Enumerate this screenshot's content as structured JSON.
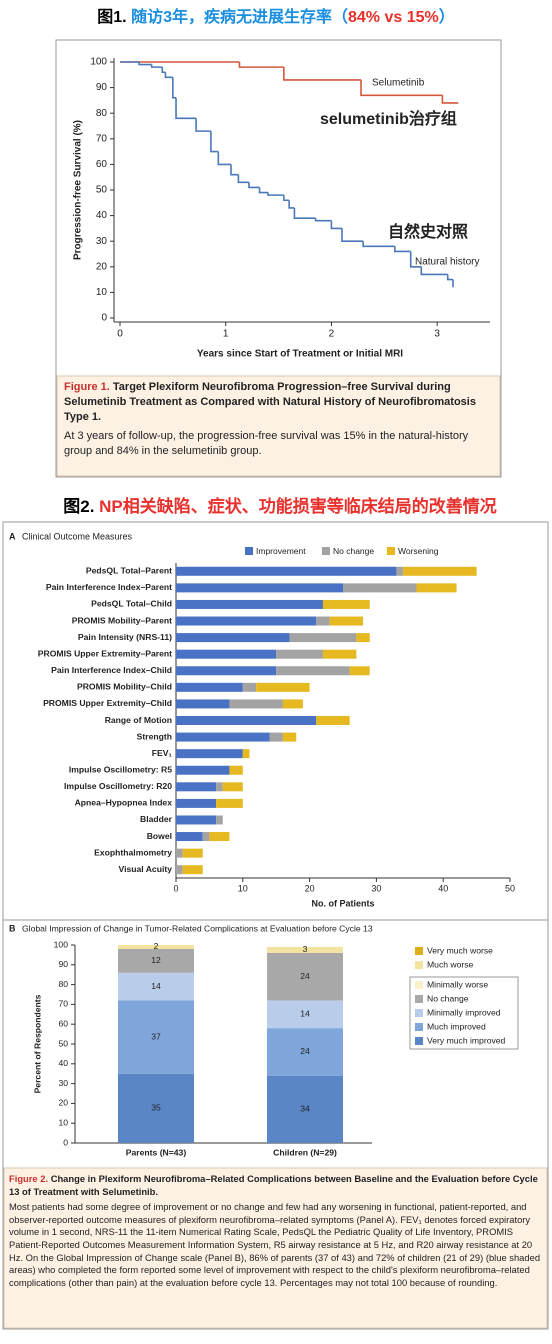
{
  "figure1": {
    "heading": [
      {
        "text": "图1.",
        "color": "#000000"
      },
      {
        "text": " 随访3年，疾病无进展生存率（",
        "color": "#1a8ee0"
      },
      {
        "text": "84% vs 15%",
        "color": "#e8302c"
      },
      {
        "text": "）",
        "color": "#1a8ee0"
      }
    ],
    "caption_label": "Figure 1.",
    "caption_title": "Target Plexiform Neurofibroma Progression–free Survival during Selumetinib Treatment as Compared with Natural History of Neurofibromatosis Type 1.",
    "caption_text": "At 3 years of follow-up, the progression-free survival was 15% in the natural-history group and 84% in the selumetinib group."
  },
  "figure2": {
    "heading": [
      {
        "text": "图2.",
        "color": "#000000"
      },
      {
        "text": " NP相关缺陷、症状、功能损害等临床结局的改善情况",
        "color": "#e8302c"
      }
    ],
    "caption_label": "Figure 2.",
    "caption_title": "Change in Plexiform Neurofibroma–Related Complications between Baseline and the Evaluation before Cycle 13 of Treatment with Selumetinib.",
    "caption_text": "Most patients had some degree of improvement or no change and few had any worsening in functional, patient-reported, and observer-reported outcome measures of plexiform neurofibroma–related symptoms (Panel A). FEV₁ denotes forced expiratory volume in 1 second, NRS-11 the 11-item Numerical Rating Scale, PedsQL the Pediatric Quality of Life Inventory, PROMIS Patient-Reported Outcomes Measurement Information System, R5 airway resistance at 5 Hz, and R20 airway resistance at 20 Hz. On the Global Impression of Change scale (Panel B), 86% of parents (37 of 43) and 72% of children (21 of 29) (blue shaded areas) who completed the form reported some level of improvement with respect to the child's plexiform neurofibroma–related complications (other than pain) at the evaluation before cycle 13. Percentages may not total 100 because of rounding."
  },
  "chart_data": [
    {
      "type": "line",
      "step": true,
      "xlabel": "Years since Start of Treatment or Initial MRI",
      "ylabel": "Progression-free Survival (%)",
      "xlim": [
        0,
        3.5
      ],
      "xticks": [
        0,
        1,
        2,
        3
      ],
      "ylim": [
        0,
        100
      ],
      "yticks": [
        0,
        10,
        20,
        30,
        40,
        50,
        60,
        70,
        80,
        90,
        100
      ],
      "series": [
        {
          "name": "Selumetinib",
          "color": "#d4573c",
          "x": [
            0,
            1.13,
            1.55,
            2.28,
            3.05,
            3.2
          ],
          "values": [
            100,
            98,
            93,
            87,
            84,
            84
          ]
        },
        {
          "name": "Natural history",
          "color": "#4a78b8",
          "x": [
            0,
            0.18,
            0.3,
            0.4,
            0.43,
            0.5,
            0.53,
            0.72,
            0.86,
            0.93,
            1.05,
            1.12,
            1.22,
            1.32,
            1.4,
            1.55,
            1.6,
            1.65,
            1.85,
            2.0,
            2.1,
            2.3,
            2.6,
            2.75,
            2.85,
            3.1,
            3.15
          ],
          "values": [
            100,
            99,
            98,
            96,
            94,
            86,
            78,
            73,
            65,
            60,
            56,
            53,
            51,
            49,
            48,
            46,
            43,
            39,
            38,
            35,
            30,
            28,
            26,
            20,
            17,
            15,
            12
          ]
        }
      ],
      "annotations": [
        {
          "text": "selumetinib治疗组",
          "color": "#e0302c"
        },
        {
          "text": "自然史对照",
          "color": "#3050c0"
        }
      ]
    },
    {
      "type": "barh",
      "stacked": true,
      "panel": "A",
      "title": "Clinical Outcome Measures",
      "xlabel": "No. of Patients",
      "xlim": [
        0,
        50
      ],
      "xticks": [
        0,
        10,
        20,
        30,
        40,
        50
      ],
      "legend": "top",
      "categories": [
        "PedsQL Total–Parent",
        "Pain Interference Index–Parent",
        "PedsQL Total–Child",
        "PROMIS Mobility–Parent",
        "Pain Intensity (NRS-11)",
        "PROMIS Upper Extremity–Parent",
        "Pain Interference Index–Child",
        "PROMIS Mobility–Child",
        "PROMIS Upper Extremity–Child",
        "Range of Motion",
        "Strength",
        "FEV₁",
        "Impulse Oscillometry: R5",
        "Impulse Oscillometry: R20",
        "Apnea–Hypopnea Index",
        "Bladder",
        "Bowel",
        "Exophthalmometry",
        "Visual Acuity"
      ],
      "series": [
        {
          "name": "Improvement",
          "color": "#4a72c4",
          "values": [
            33,
            25,
            22,
            21,
            17,
            15,
            15,
            10,
            8,
            21,
            14,
            10,
            8,
            6,
            6,
            6,
            4,
            0,
            0
          ]
        },
        {
          "name": "No change",
          "color": "#a3a3a3",
          "values": [
            1,
            11,
            0,
            2,
            10,
            7,
            11,
            2,
            8,
            0,
            2,
            0,
            0,
            1,
            0,
            1,
            1,
            1,
            1
          ]
        },
        {
          "name": "Worsening",
          "color": "#e6b920",
          "values": [
            11,
            6,
            7,
            5,
            2,
            5,
            3,
            8,
            3,
            5,
            2,
            1,
            2,
            3,
            4,
            0,
            3,
            3,
            3
          ]
        }
      ]
    },
    {
      "type": "bar",
      "stacked": true,
      "panel": "B",
      "title": "Global Impression of Change in Tumor-Related Complications at Evaluation before Cycle 13",
      "ylabel": "Percent of Respondents",
      "ylim": [
        0,
        100
      ],
      "yticks": [
        0,
        10,
        20,
        30,
        40,
        50,
        60,
        70,
        80,
        90,
        100
      ],
      "legend": "right",
      "categories": [
        "Parents (N=43)",
        "Children (N=29)"
      ],
      "series": [
        {
          "name": "Very much improved",
          "color": "#5a86c6",
          "label_color": "#ffffff",
          "values": [
            35,
            34
          ]
        },
        {
          "name": "Much improved",
          "color": "#7ea6da",
          "label_color": "#ffffff",
          "values": [
            37,
            24
          ]
        },
        {
          "name": "Minimally improved",
          "color": "#b9cdeb",
          "label_color": "#222222",
          "values": [
            14,
            14
          ]
        },
        {
          "name": "No change",
          "color": "#a8a8a8",
          "label_color": "#222222",
          "values": [
            12,
            24
          ]
        },
        {
          "name": "Minimally worse",
          "color": "#f8f0cc",
          "label_color": "#222222",
          "values": [
            0,
            0
          ]
        },
        {
          "name": "Much worse",
          "color": "#f3e3a0",
          "label_color": "#222222",
          "values": [
            2,
            3
          ]
        },
        {
          "name": "Very much worse",
          "color": "#dfae1e",
          "label_color": "#222222",
          "values": [
            0,
            0
          ]
        }
      ]
    }
  ]
}
